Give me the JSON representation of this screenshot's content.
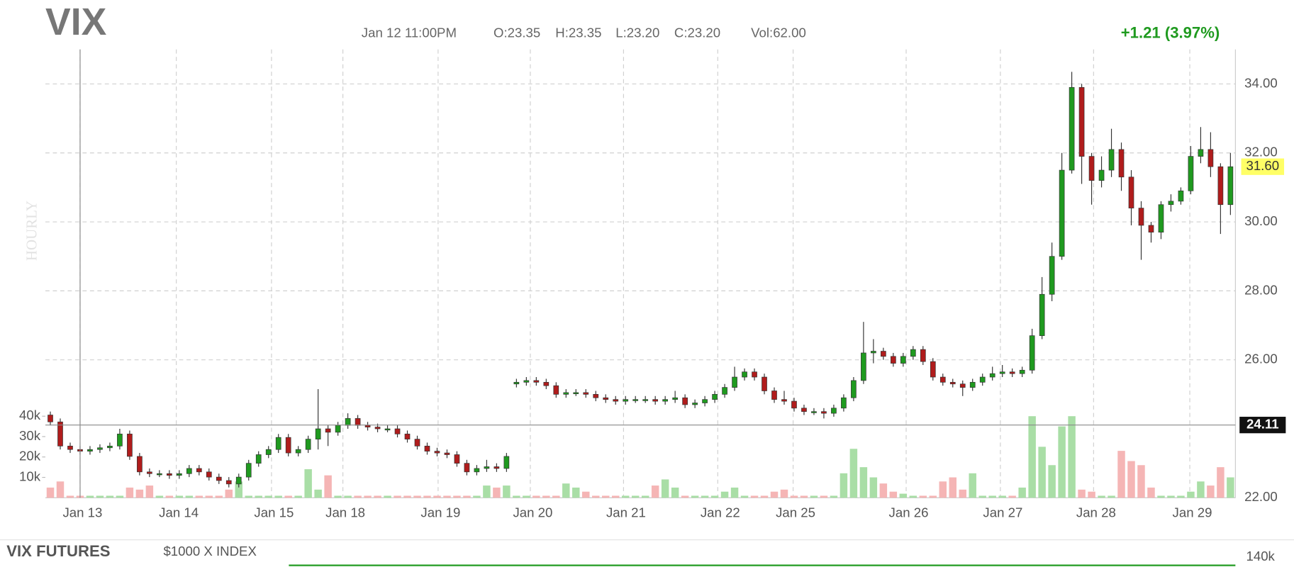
{
  "header": {
    "symbol": "VIX",
    "time": "Jan 12 11:00PM",
    "ohlc": [
      "O:23.35",
      "H:23.35",
      "L:23.20",
      "C:23.20"
    ],
    "volume": "Vol:62.00",
    "change": "+1.21 (3.97%)"
  },
  "chart_data": {
    "type": "candlestick",
    "interval_label": "HOURLY",
    "x": [
      0,
      1,
      2,
      3,
      4,
      5,
      6,
      7,
      8,
      9,
      10,
      11,
      12,
      13,
      14,
      15,
      16,
      17,
      18,
      19,
      20,
      21,
      22,
      23,
      24,
      25,
      26,
      27,
      28,
      29,
      30,
      31,
      32,
      33,
      34,
      35,
      36,
      37,
      38,
      39,
      40,
      41,
      42,
      43,
      44,
      45,
      46,
      47,
      48,
      49,
      50,
      51,
      52,
      53,
      54,
      55,
      56,
      57,
      58,
      59,
      60,
      61,
      62,
      63,
      64,
      65,
      66,
      67,
      68,
      69,
      70,
      71,
      72,
      73,
      74,
      75,
      76,
      77,
      78,
      79,
      80,
      81,
      82,
      83,
      84,
      85,
      86,
      87,
      88,
      89,
      90,
      91,
      92,
      93,
      94,
      95,
      96,
      97,
      98,
      99,
      100,
      101,
      102,
      103,
      104,
      105,
      106,
      107,
      108,
      109,
      110,
      111,
      112,
      113,
      114,
      115,
      116,
      117,
      118,
      119
    ],
    "open": [
      24.4,
      24.2,
      23.5,
      23.4,
      23.35,
      23.4,
      23.45,
      23.5,
      23.85,
      23.2,
      22.75,
      22.7,
      22.7,
      22.65,
      22.7,
      22.85,
      22.75,
      22.6,
      22.5,
      22.4,
      22.6,
      23.0,
      23.25,
      23.4,
      23.75,
      23.3,
      23.4,
      23.7,
      24.0,
      23.9,
      24.1,
      24.3,
      24.1,
      24.05,
      24.0,
      24.0,
      23.85,
      23.7,
      23.5,
      23.35,
      23.3,
      23.25,
      23.0,
      22.75,
      22.85,
      22.9,
      22.85,
      25.3,
      25.35,
      25.4,
      25.35,
      25.25,
      25.0,
      25.05,
      25.05,
      25.0,
      24.9,
      24.85,
      24.8,
      24.85,
      24.85,
      24.85,
      24.8,
      24.85,
      24.9,
      24.7,
      24.75,
      24.85,
      25.0,
      25.2,
      25.5,
      25.65,
      25.5,
      25.1,
      24.85,
      24.8,
      24.6,
      24.5,
      24.5,
      24.45,
      24.6,
      24.9,
      25.4,
      26.2,
      26.25,
      26.1,
      25.9,
      26.1,
      26.3,
      25.95,
      25.5,
      25.35,
      25.3,
      25.2,
      25.35,
      25.5,
      25.6,
      25.65,
      25.6,
      25.7,
      26.7,
      27.9,
      29.0,
      31.5,
      33.9,
      31.9,
      31.2,
      31.5,
      32.1,
      31.3,
      30.4,
      29.9,
      29.7,
      30.5,
      30.6,
      30.9,
      31.9,
      32.1,
      31.6,
      30.5
    ],
    "high": [
      24.5,
      24.3,
      23.6,
      23.5,
      23.5,
      23.55,
      23.6,
      24.0,
      23.95,
      23.3,
      22.85,
      22.8,
      22.8,
      22.8,
      22.95,
      22.95,
      22.85,
      22.7,
      22.6,
      22.7,
      23.1,
      23.35,
      23.5,
      23.85,
      23.85,
      23.5,
      23.8,
      25.15,
      24.1,
      24.2,
      24.45,
      24.4,
      24.2,
      24.15,
      24.1,
      24.1,
      23.95,
      23.8,
      23.6,
      23.45,
      23.4,
      23.35,
      23.1,
      22.95,
      23.1,
      23.0,
      23.3,
      25.45,
      25.5,
      25.5,
      25.45,
      25.35,
      25.15,
      25.15,
      25.15,
      25.1,
      25.0,
      24.95,
      24.95,
      24.95,
      24.95,
      24.95,
      24.95,
      25.1,
      25.0,
      24.85,
      24.95,
      25.1,
      25.3,
      25.8,
      25.75,
      25.75,
      25.6,
      25.2,
      25.1,
      24.9,
      24.7,
      24.6,
      24.6,
      24.7,
      25.0,
      25.5,
      27.1,
      26.6,
      26.35,
      26.2,
      26.2,
      26.4,
      26.4,
      26.05,
      25.6,
      25.45,
      25.4,
      25.45,
      25.6,
      25.8,
      25.85,
      25.75,
      25.8,
      26.9,
      28.4,
      29.4,
      32.0,
      34.35,
      34.0,
      32.0,
      31.9,
      32.7,
      32.3,
      31.5,
      30.6,
      30.0,
      30.6,
      30.8,
      31.0,
      32.2,
      32.75,
      32.6,
      31.7,
      32.0
    ],
    "low": [
      24.1,
      23.4,
      23.3,
      23.25,
      23.25,
      23.3,
      23.35,
      23.4,
      23.1,
      22.65,
      22.6,
      22.6,
      22.55,
      22.55,
      22.6,
      22.65,
      22.5,
      22.4,
      22.3,
      22.3,
      22.5,
      22.9,
      23.15,
      23.3,
      23.2,
      23.2,
      23.3,
      23.4,
      23.5,
      23.8,
      24.0,
      24.0,
      23.95,
      23.9,
      23.9,
      23.75,
      23.6,
      23.4,
      23.25,
      23.2,
      23.15,
      22.9,
      22.65,
      22.65,
      22.75,
      22.75,
      22.75,
      25.2,
      25.25,
      25.25,
      25.15,
      24.9,
      24.9,
      24.95,
      24.9,
      24.8,
      24.75,
      24.7,
      24.7,
      24.75,
      24.75,
      24.7,
      24.7,
      24.75,
      24.6,
      24.6,
      24.65,
      24.75,
      24.9,
      25.1,
      25.4,
      25.4,
      25.0,
      24.75,
      24.7,
      24.5,
      24.4,
      24.4,
      24.3,
      24.35,
      24.5,
      24.8,
      25.3,
      25.9,
      26.0,
      25.8,
      25.8,
      26.0,
      25.85,
      25.4,
      25.25,
      25.2,
      24.95,
      25.1,
      25.25,
      25.4,
      25.5,
      25.5,
      25.5,
      25.6,
      26.6,
      27.7,
      28.9,
      31.4,
      31.1,
      30.5,
      31.0,
      31.3,
      30.9,
      29.9,
      28.9,
      29.4,
      29.5,
      30.3,
      30.5,
      30.8,
      31.7,
      31.3,
      29.65,
      30.2
    ],
    "close": [
      24.2,
      23.5,
      23.4,
      23.35,
      23.4,
      23.45,
      23.5,
      23.85,
      23.2,
      22.75,
      22.7,
      22.7,
      22.65,
      22.7,
      22.85,
      22.75,
      22.6,
      22.5,
      22.4,
      22.6,
      23.0,
      23.25,
      23.4,
      23.75,
      23.3,
      23.4,
      23.7,
      24.0,
      23.9,
      24.1,
      24.3,
      24.1,
      24.05,
      24.0,
      24.0,
      23.85,
      23.7,
      23.5,
      23.35,
      23.3,
      23.25,
      23.0,
      22.75,
      22.85,
      22.9,
      22.85,
      23.2,
      25.35,
      25.4,
      25.35,
      25.25,
      25.0,
      25.05,
      25.05,
      25.0,
      24.9,
      24.85,
      24.8,
      24.85,
      24.85,
      24.85,
      24.8,
      24.85,
      24.9,
      24.7,
      24.75,
      24.85,
      25.0,
      25.2,
      25.5,
      25.65,
      25.5,
      25.1,
      24.85,
      24.8,
      24.6,
      24.5,
      24.5,
      24.45,
      24.6,
      24.9,
      25.4,
      26.2,
      26.25,
      26.1,
      25.9,
      26.1,
      26.3,
      25.95,
      25.5,
      25.35,
      25.3,
      25.2,
      25.35,
      25.5,
      25.6,
      25.65,
      25.6,
      25.7,
      26.7,
      27.9,
      29.0,
      31.5,
      33.9,
      31.9,
      31.2,
      31.5,
      32.1,
      31.3,
      30.4,
      29.9,
      29.7,
      30.5,
      30.6,
      30.9,
      31.9,
      32.1,
      31.6,
      30.5,
      31.6
    ],
    "volume": [
      5000,
      8000,
      1000,
      1000,
      1000,
      1000,
      1000,
      1000,
      5000,
      4000,
      6000,
      1000,
      1000,
      1000,
      1000,
      1000,
      1000,
      1000,
      4000,
      8000,
      1000,
      1000,
      1000,
      1000,
      1000,
      1000,
      14000,
      4000,
      11000,
      1000,
      1000,
      1000,
      1000,
      1000,
      1000,
      1000,
      1000,
      1000,
      1000,
      1000,
      1000,
      1000,
      1000,
      1000,
      6000,
      5000,
      6000,
      1000,
      1000,
      1000,
      1000,
      1000,
      7000,
      5000,
      3000,
      1000,
      1000,
      1000,
      1000,
      1000,
      1000,
      6000,
      9000,
      5000,
      1000,
      1000,
      1000,
      1000,
      3000,
      5000,
      1000,
      1000,
      1000,
      3000,
      4000,
      1000,
      1000,
      1000,
      1000,
      1000,
      12000,
      24000,
      15000,
      10000,
      7000,
      3000,
      2000,
      1000,
      1000,
      1000,
      8000,
      10000,
      4000,
      12000,
      1000,
      1000,
      1000,
      1000,
      5000,
      40000,
      25000,
      16000,
      35000,
      40000,
      4000,
      3000,
      1000,
      1000,
      23000,
      18000,
      16000,
      5000,
      1000,
      1000,
      1000,
      3000,
      8000,
      6000,
      15000,
      10000
    ],
    "up_color": "#1f9a1f",
    "down_color": "#b01c1c",
    "up_volume_color": "#a9dea6",
    "down_volume_color": "#f5b5b5",
    "xlim": [
      -0.5,
      119.5
    ],
    "xticks": [
      {
        "value": 3,
        "label": "Jan 13"
      },
      {
        "value": 12.7,
        "label": "Jan 14"
      },
      {
        "value": 22.3,
        "label": "Jan 15"
      },
      {
        "value": 29.5,
        "label": "Jan 18"
      },
      {
        "value": 39.1,
        "label": "Jan 19"
      },
      {
        "value": 48.4,
        "label": "Jan 20"
      },
      {
        "value": 57.8,
        "label": "Jan 21"
      },
      {
        "value": 67.3,
        "label": "Jan 22"
      },
      {
        "value": 74.9,
        "label": "Jan 25"
      },
      {
        "value": 86.3,
        "label": "Jan 26"
      },
      {
        "value": 95.8,
        "label": "Jan 27"
      },
      {
        "value": 105.2,
        "label": "Jan 28"
      },
      {
        "value": 114.9,
        "label": "Jan 29"
      }
    ],
    "ylim": [
      22,
      35
    ],
    "yticks": [
      {
        "value": 22,
        "label": "22.00"
      },
      {
        "value": 26,
        "label": "26.00"
      },
      {
        "value": 28,
        "label": "28.00"
      },
      {
        "value": 30,
        "label": "30.00"
      },
      {
        "value": 32,
        "label": "32.00"
      },
      {
        "value": 34,
        "label": "34.00"
      }
    ],
    "volume_lim": [
      0,
      40000
    ],
    "volume_ticks": [
      {
        "value": 10000,
        "label": "10k"
      },
      {
        "value": 20000,
        "label": "20k"
      },
      {
        "value": 30000,
        "label": "30k"
      },
      {
        "value": 40000,
        "label": "40k"
      }
    ],
    "grid": true,
    "last_price": {
      "value": 31.6,
      "label": "31.60"
    },
    "crosshair": {
      "x": 3,
      "price": {
        "value": 24.11,
        "label": "24.11"
      }
    }
  },
  "footer": {
    "title": "VIX FUTURES",
    "subtitle": "$1000 X INDEX",
    "axis_label": "140k"
  }
}
